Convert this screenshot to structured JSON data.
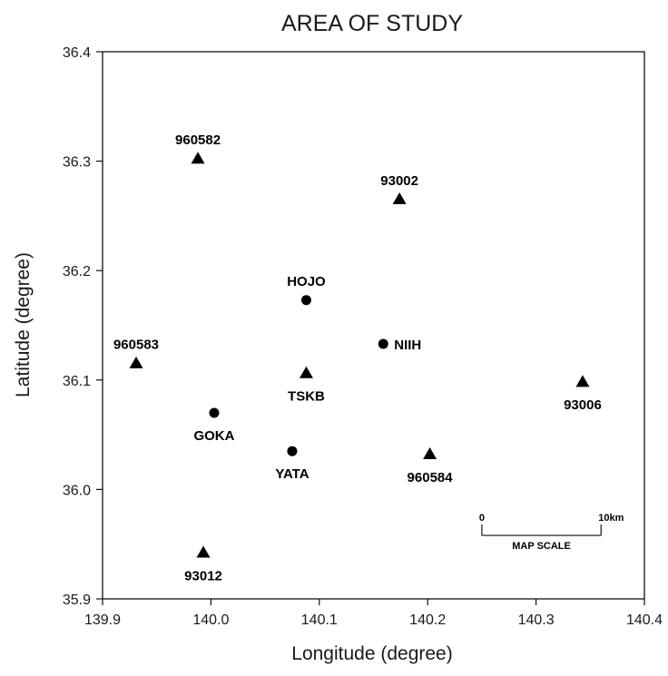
{
  "chart_data": {
    "type": "scatter",
    "title": "AREA OF STUDY",
    "xlabel": "Longitude (degree)",
    "ylabel": "Latitude (degree)",
    "xlim": [
      139.9,
      140.4
    ],
    "ylim": [
      35.9,
      36.4
    ],
    "xticks": [
      "139.9",
      "140.0",
      "140.1",
      "140.2",
      "140.3",
      "140.4"
    ],
    "yticks": [
      "35.9",
      "36.0",
      "36.1",
      "36.2",
      "36.3",
      "36.4"
    ],
    "grid": false,
    "legend": "none",
    "series": [
      {
        "marker": "triangle",
        "color": "#000000",
        "points": [
          {
            "label": "960582",
            "x": 139.988,
            "y": 36.302,
            "label_pos": "above"
          },
          {
            "label": "93002",
            "x": 140.174,
            "y": 36.265,
            "label_pos": "above"
          },
          {
            "label": "960583",
            "x": 139.931,
            "y": 36.115,
            "label_pos": "above"
          },
          {
            "label": "TSKB",
            "x": 140.088,
            "y": 36.106,
            "label_pos": "below"
          },
          {
            "label": "93006",
            "x": 140.343,
            "y": 36.098,
            "label_pos": "below"
          },
          {
            "label": "960584",
            "x": 140.202,
            "y": 36.032,
            "label_pos": "below"
          },
          {
            "label": "93012",
            "x": 139.993,
            "y": 35.942,
            "label_pos": "below"
          }
        ]
      },
      {
        "marker": "circle",
        "color": "#000000",
        "points": [
          {
            "label": "HOJO",
            "x": 140.088,
            "y": 36.173,
            "label_pos": "above"
          },
          {
            "label": "NIIH",
            "x": 140.159,
            "y": 36.133,
            "label_pos": "right"
          },
          {
            "label": "GOKA",
            "x": 140.003,
            "y": 36.07,
            "label_pos": "below"
          },
          {
            "label": "YATA",
            "x": 140.075,
            "y": 36.035,
            "label_pos": "below"
          }
        ]
      }
    ],
    "scale_bar": {
      "start_label": "0",
      "end_label": "10km",
      "caption": "MAP SCALE",
      "x_start": 140.25,
      "x_end": 140.36,
      "y": 35.958
    }
  }
}
